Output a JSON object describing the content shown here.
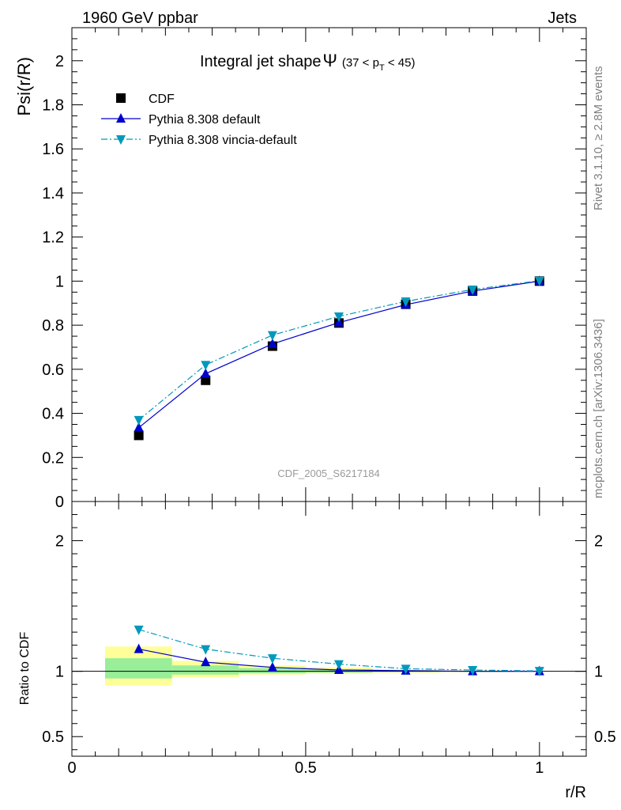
{
  "header": {
    "left": "1960 GeV ppbar",
    "right": "Jets"
  },
  "side_labels": {
    "rivet": "Rivet 3.1.10, ≥ 2.8M events",
    "mcplots": "mcplots.cern.ch [arXiv:1306.3436]"
  },
  "watermark": "CDF_2005_S6217184",
  "chart_data": {
    "type": "line",
    "title_main": "Integral jet shape",
    "title_psi": "Ψ",
    "title_range_lead": "(37 < p",
    "title_range_sub": "T",
    "title_range_tail": " < 45)",
    "xlabel": "r/R",
    "ylabel": "Psi(r/R)",
    "ratio_ylabel": "Ratio to CDF",
    "xlim": [
      0,
      1.1
    ],
    "ylim": [
      0,
      2.15
    ],
    "ratio_ylim": [
      0.35,
      2.3
    ],
    "x_ticks": [
      "0",
      "0.5",
      "1"
    ],
    "y_ticks": [
      "0",
      "0.2",
      "0.4",
      "0.6",
      "0.8",
      "1",
      "1.2",
      "1.4",
      "1.6",
      "1.8",
      "2"
    ],
    "ratio_y_ticks": [
      "0.5",
      "1",
      "2"
    ],
    "legend": {
      "placement": "top-left"
    },
    "x": [
      0.143,
      0.286,
      0.429,
      0.571,
      0.714,
      0.857,
      1.0
    ],
    "series": [
      {
        "name": "CDF",
        "marker": "square",
        "color": "#000000",
        "values": [
          0.3,
          0.55,
          0.705,
          0.81,
          0.895,
          0.955,
          1.0
        ]
      },
      {
        "name": "Pythia 8.308 default",
        "marker": "triangle-up",
        "color": "#0000cc",
        "line": "solid",
        "values": [
          0.335,
          0.58,
          0.715,
          0.812,
          0.893,
          0.955,
          1.0
        ]
      },
      {
        "name": "Pythia 8.308 vincia-default",
        "marker": "triangle-down",
        "color": "#0099bb",
        "line": "dashdot",
        "values": [
          0.37,
          0.62,
          0.755,
          0.84,
          0.908,
          0.962,
          1.002
        ]
      }
    ],
    "ratio_series": [
      {
        "name": "Pythia 8.308 default",
        "values": [
          1.17,
          1.07,
          1.03,
          1.01,
          1.005,
          1.0,
          1.0
        ]
      },
      {
        "name": "Pythia 8.308 vincia-default",
        "values": [
          1.32,
          1.17,
          1.1,
          1.055,
          1.02,
          1.01,
          1.003
        ]
      }
    ],
    "bands": [
      {
        "x0": 0.071,
        "x1": 0.214,
        "yellow": [
          0.89,
          1.19
        ],
        "green": [
          0.945,
          1.1
        ]
      },
      {
        "x0": 0.214,
        "x1": 0.357,
        "yellow": [
          0.955,
          1.08
        ],
        "green": [
          0.975,
          1.045
        ]
      },
      {
        "x0": 0.357,
        "x1": 0.5,
        "yellow": [
          0.975,
          1.045
        ],
        "green": [
          0.985,
          1.025
        ]
      },
      {
        "x0": 0.5,
        "x1": 0.643,
        "yellow": [
          0.985,
          1.03
        ],
        "green": [
          0.99,
          1.015
        ]
      },
      {
        "x0": 0.643,
        "x1": 0.786,
        "yellow": [
          0.99,
          1.015
        ],
        "green": [
          0.995,
          1.008
        ]
      },
      {
        "x0": 0.786,
        "x1": 0.929,
        "yellow": [
          0.995,
          1.008
        ],
        "green": [
          0.997,
          1.004
        ]
      }
    ]
  }
}
